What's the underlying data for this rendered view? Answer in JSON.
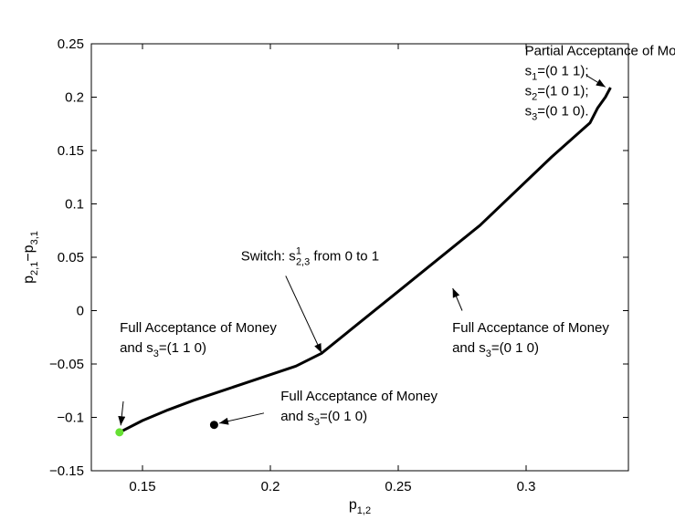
{
  "chart_data": {
    "type": "line",
    "title": "",
    "xlabel": {
      "base": "p",
      "sub": "1,2"
    },
    "ylabel": {
      "p1": "p",
      "s1": "2,1",
      "minus": "−",
      "p2": "p",
      "s2": "3,1"
    },
    "xlim": [
      0.13,
      0.34
    ],
    "ylim": [
      -0.15,
      0.25
    ],
    "xticks": [
      0.15,
      0.2,
      0.25,
      0.3
    ],
    "xtick_labels": [
      "0.15",
      "0.2",
      "0.25",
      "0.3"
    ],
    "yticks": [
      -0.15,
      -0.1,
      -0.05,
      0,
      0.05,
      0.1,
      0.15,
      0.2,
      0.25
    ],
    "ytick_labels": [
      "−0.15",
      "−0.1",
      "−0.05",
      "0",
      "0.05",
      "0.1",
      "0.15",
      "0.2",
      "0.25"
    ],
    "grid": false,
    "series": [
      {
        "x": [
          0.141,
          0.15,
          0.16,
          0.17,
          0.18,
          0.19,
          0.2,
          0.21,
          0.22,
          0.25,
          0.282,
          0.31,
          0.325,
          0.328,
          0.331,
          0.333
        ],
        "y": [
          -0.114,
          -0.103,
          -0.093,
          -0.084,
          -0.076,
          -0.068,
          -0.06,
          -0.052,
          -0.04,
          0.018,
          0.08,
          0.144,
          0.176,
          0.19,
          0.2,
          0.209
        ],
        "color": "#000000"
      }
    ],
    "points": [
      {
        "x": 0.141,
        "y": -0.114,
        "color": "#66e033"
      },
      {
        "x": 0.178,
        "y": -0.107,
        "color": "#000000"
      }
    ],
    "annotations": [
      {
        "lines": [
          [
            {
              "t": "Partial Acceptance of Money"
            }
          ],
          [
            {
              "t": "s"
            },
            {
              "t": "1",
              "sub": true
            },
            {
              "t": "=(0 1 1);"
            }
          ],
          [
            {
              "t": "s"
            },
            {
              "t": "2",
              "sub": true
            },
            {
              "t": "=(1 0 1);"
            }
          ],
          [
            {
              "t": "s"
            },
            {
              "t": "3",
              "sub": true
            },
            {
              "t": "=(0 1 0)."
            }
          ]
        ],
        "text_at": [
          0.2995,
          0.2395
        ],
        "arrow_from": [
          0.3235,
          0.2205
        ],
        "arrow_to": [
          0.331,
          0.2095
        ]
      },
      {
        "lines": [
          [
            {
              "t": "Switch: s"
            },
            {
              "t": "1",
              "sup": true
            },
            {
              "t": "2,3",
              "sub": true,
              "pull": true
            },
            {
              "t": " from 0 to 1"
            }
          ]
        ],
        "text_at": [
          0.1885,
          0.0468
        ],
        "arrow_from": [
          0.206,
          0.0325
        ],
        "arrow_to": [
          0.22,
          -0.0395
        ]
      },
      {
        "lines": [
          [
            {
              "t": "Full Acceptance of Money"
            }
          ],
          [
            {
              "t": "and s"
            },
            {
              "t": "3",
              "sub": true
            },
            {
              "t": "=(0 1 0)"
            }
          ]
        ],
        "text_at": [
          0.2711,
          -0.02
        ],
        "arrow_from": [
          0.275,
          0.0
        ],
        "arrow_to": [
          0.2713,
          0.021
        ]
      },
      {
        "lines": [
          [
            {
              "t": "Full Acceptance of Money"
            }
          ],
          [
            {
              "t": "and s"
            },
            {
              "t": "3",
              "sub": true
            },
            {
              "t": "=(1 1 0)"
            }
          ]
        ],
        "text_at": [
          0.1411,
          -0.0199
        ],
        "arrow_from": [
          0.1425,
          -0.085
        ],
        "arrow_to": [
          0.1415,
          -0.1075
        ]
      },
      {
        "lines": [
          [
            {
              "t": "Full Acceptance of Money"
            }
          ],
          [
            {
              "t": "and s"
            },
            {
              "t": "3",
              "sub": true
            },
            {
              "t": "=(0 1 0)"
            }
          ]
        ],
        "text_at": [
          0.204,
          -0.084
        ],
        "arrow_from": [
          0.1975,
          -0.096
        ],
        "arrow_to": [
          0.18,
          -0.1055
        ]
      }
    ]
  }
}
